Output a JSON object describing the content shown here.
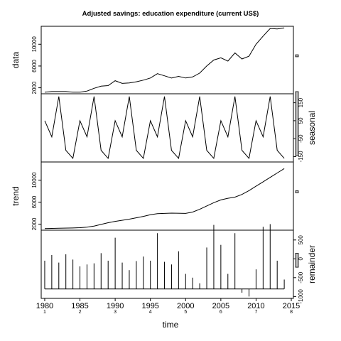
{
  "chart_data": {
    "type": "line",
    "title": "Adjusted savings: education expenditure (current US$)",
    "xlabel": "time",
    "x_ticks": [
      "1980",
      "1985",
      "1990",
      "1995",
      "2000",
      "2005",
      "2010",
      "2015"
    ],
    "cycle_ticks": [
      "1",
      "2",
      "3",
      "4",
      "5",
      "6",
      "7",
      "8"
    ],
    "xlim": [
      1979.5,
      2015.3
    ],
    "panels": [
      {
        "key": "data",
        "label": "data",
        "ylim": [
          900,
          13300
        ],
        "yticks": [
          "2000",
          "6000",
          "10000"
        ],
        "ytick_values": [
          2000,
          6000,
          10000
        ],
        "x": [
          1980,
          1981,
          1982,
          1983,
          1984,
          1985,
          1986,
          1987,
          1988,
          1989,
          1990,
          1991,
          1992,
          1993,
          1994,
          1995,
          1996,
          1997,
          1998,
          1999,
          2000,
          2001,
          2002,
          2003,
          2004,
          2005,
          2006,
          2007,
          2008,
          2009,
          2010,
          2011,
          2012,
          2013,
          2014
        ],
        "values": [
          1200,
          1300,
          1300,
          1300,
          1200,
          1200,
          1400,
          1900,
          2300,
          2400,
          3300,
          2800,
          2900,
          3100,
          3400,
          3800,
          4600,
          4200,
          3800,
          4100,
          3800,
          4000,
          4700,
          6000,
          7100,
          7500,
          6900,
          8400,
          7300,
          7800,
          10000,
          11500,
          12900,
          12800,
          13000
        ]
      },
      {
        "key": "seasonal",
        "label": "seasonal",
        "ylim": [
          -180,
          200
        ],
        "yticks": [
          "-150",
          "-50",
          "50",
          "150"
        ],
        "ytick_values": [
          -150,
          -50,
          50,
          150
        ],
        "x": [
          1980,
          1981,
          1982,
          1983,
          1984,
          1985,
          1986,
          1987,
          1988,
          1989,
          1990,
          1991,
          1992,
          1993,
          1994,
          1995,
          1996,
          1997,
          1998,
          1999,
          2000,
          2001,
          2002,
          2003,
          2004,
          2005,
          2006,
          2007,
          2008,
          2009,
          2010,
          2011,
          2012,
          2013,
          2014
        ],
        "values": [
          50,
          -40,
          185,
          -115,
          -160,
          50,
          -40,
          185,
          -115,
          -160,
          50,
          -40,
          185,
          -115,
          -160,
          50,
          -40,
          185,
          -115,
          -160,
          50,
          -40,
          185,
          -115,
          -160,
          50,
          -40,
          185,
          -115,
          -160,
          50,
          -40,
          185,
          -115,
          -160
        ]
      },
      {
        "key": "trend",
        "label": "trend",
        "ylim": [
          900,
          13300
        ],
        "yticks": [
          "2000",
          "6000",
          "10000"
        ],
        "ytick_values": [
          2000,
          6000,
          10000
        ],
        "x": [
          1980,
          1982,
          1984,
          1985,
          1986,
          1987,
          1988,
          1989,
          1990,
          1992,
          1994,
          1995,
          1996,
          1998,
          2000,
          2001,
          2002,
          2003,
          2004,
          2005,
          2006,
          2007,
          2008,
          2009,
          2010,
          2011,
          2012,
          2013,
          2014
        ],
        "values": [
          1200,
          1250,
          1300,
          1350,
          1450,
          1650,
          1950,
          2250,
          2500,
          2900,
          3400,
          3700,
          3900,
          4000,
          3950,
          4200,
          4700,
          5300,
          5900,
          6400,
          6700,
          6900,
          7400,
          8100,
          8900,
          9700,
          10500,
          11300,
          12100
        ]
      },
      {
        "key": "remainder",
        "label": "remainder",
        "ylim": [
          -1050,
          760
        ],
        "yticks": [
          "-1000",
          "-500",
          "0",
          "500"
        ],
        "ytick_values": [
          -1000,
          -500,
          0,
          500
        ],
        "baseline_value": -800,
        "x": [
          1980,
          1981,
          1982,
          1983,
          1984,
          1985,
          1986,
          1987,
          1988,
          1989,
          1990,
          1991,
          1992,
          1993,
          1994,
          1995,
          1996,
          1997,
          1998,
          1999,
          2000,
          2001,
          2002,
          2003,
          2004,
          2005,
          2006,
          2007,
          2008,
          2009,
          2010,
          2011,
          2012,
          2013,
          2014
        ],
        "values": [
          -50,
          100,
          -100,
          120,
          -20,
          -200,
          -150,
          -120,
          150,
          -50,
          560,
          -100,
          -300,
          -60,
          60,
          -50,
          680,
          -80,
          -150,
          200,
          -400,
          -500,
          -650,
          300,
          900,
          370,
          -400,
          680,
          -900,
          -1000,
          -280,
          850,
          920,
          -50,
          -550
        ]
      }
    ]
  }
}
